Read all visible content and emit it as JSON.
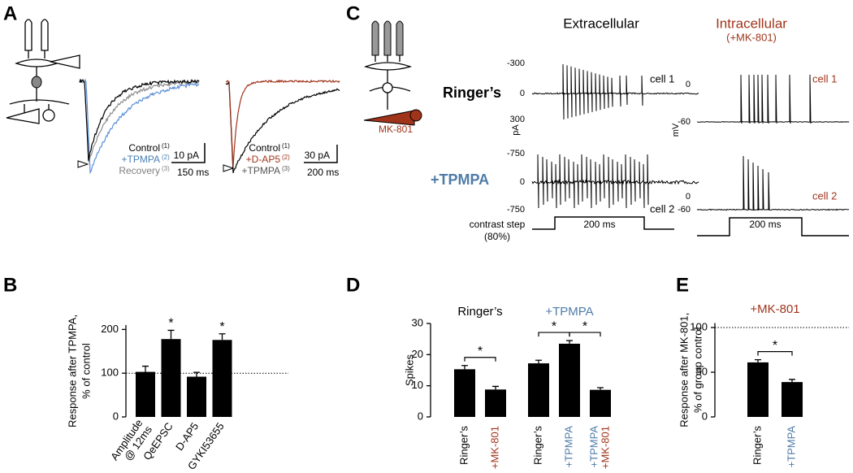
{
  "panel_labels": {
    "a": "A",
    "b": "B",
    "c": "C",
    "d": "D",
    "e": "E"
  },
  "panel_a": {
    "left": {
      "legend": [
        {
          "label": "Control",
          "index": "(1)",
          "color": "#000000"
        },
        {
          "label": "+TPMPA",
          "index": "(2)",
          "color": "#4a7fb5"
        },
        {
          "label": "Recovery",
          "index": "(3)",
          "color": "#808080"
        }
      ],
      "scale_y": "10 pA",
      "scale_x": "150 ms"
    },
    "right": {
      "legend": [
        {
          "label": "Control",
          "index": "(1)",
          "color": "#000000"
        },
        {
          "label": "+D-AP5",
          "index": "(2)",
          "color": "#a0341b"
        },
        {
          "label": "+TPMPA",
          "index": "(3)",
          "color": "#555555"
        }
      ],
      "scale_y": "30 pA",
      "scale_x": "200 ms"
    }
  },
  "panel_c": {
    "extracellular": "Extracellular",
    "intracellular": "Intracellular",
    "intracellular_note": "(+MK-801)",
    "intracellular_color": "#a0341b",
    "drug_label": "MK-801",
    "units": {
      "extra": "pA",
      "intra": "mV"
    },
    "rows": [
      {
        "label": "Ringer’s",
        "color": "#000000",
        "extra_ticks": [
          "-300",
          "0",
          "300"
        ],
        "extra_cell": "cell 1",
        "intra_ticks": [
          "0",
          "-60"
        ],
        "intra_cell": "cell 1"
      },
      {
        "label": "+TPMPA",
        "color": "#4f7ca8",
        "extra_ticks": [
          "-750",
          "0",
          "-750"
        ],
        "extra_cell": "cell 2",
        "intra_ticks": [
          "0",
          "-60"
        ],
        "intra_cell": "cell 2"
      }
    ],
    "stimulus": {
      "label": [
        "contrast step",
        "(80%)"
      ],
      "extra_duration": "200 ms",
      "intra_duration": "200 ms"
    }
  },
  "chart_data": [
    {
      "type": "bar",
      "ylabel": [
        "Response after TPMPA,",
        "% of control"
      ],
      "ylim": [
        0,
        210
      ],
      "yticks": [
        0,
        100,
        200
      ],
      "reference_line": 100,
      "color": "#000000",
      "groups": [
        {
          "categories": [
            [
              "Amplitude",
              "@ 12ms"
            ],
            [
              "QeEPSC"
            ],
            [
              "D-AP5"
            ],
            [
              "GYKI53655"
            ]
          ],
          "category_colors": [
            [
              "#000000",
              "#000000"
            ],
            [
              "#000000"
            ],
            [
              "#000000"
            ],
            [
              "#000000"
            ]
          ],
          "values": [
            103,
            178,
            92,
            176
          ],
          "errors": [
            13,
            20,
            10,
            14
          ],
          "brackets": [],
          "markers": [
            {
              "index": 1,
              "label": "*"
            },
            {
              "index": 3,
              "label": "*"
            }
          ]
        }
      ]
    },
    {
      "type": "bar",
      "ylabel": [
        "Spikes"
      ],
      "ylim": [
        0,
        30
      ],
      "yticks": [
        0,
        10,
        20,
        30
      ],
      "color": "#000000",
      "groups": [
        {
          "title": "Ringer’s",
          "title_color": "#000000",
          "categories": [
            [
              "Ringer’s"
            ],
            [
              "+MK-801"
            ]
          ],
          "category_colors": [
            [
              "#000000"
            ],
            [
              "#a0341b"
            ]
          ],
          "values": [
            15.3,
            8.8
          ],
          "errors": [
            1.2,
            1.0
          ],
          "brackets": [
            {
              "from": 0,
              "to": 1,
              "label": "*"
            }
          ],
          "markers": []
        },
        {
          "title": "+TPMPA",
          "title_color": "#4f7ca8",
          "categories": [
            [
              "Ringer’s"
            ],
            [
              "+TPMPA"
            ],
            [
              "+TPMPA",
              "+MK-801"
            ]
          ],
          "category_colors": [
            [
              "#000000"
            ],
            [
              "#4f7ca8"
            ],
            [
              "#4f7ca8",
              "#a0341b"
            ]
          ],
          "values": [
            17.2,
            23.5,
            8.7
          ],
          "errors": [
            1.0,
            1.0,
            0.7
          ],
          "brackets": [
            {
              "from": 0,
              "to": 1,
              "label": "*"
            },
            {
              "from": 1,
              "to": 2,
              "label": "*"
            }
          ],
          "markers": []
        }
      ]
    },
    {
      "type": "bar",
      "title": "+MK-801",
      "title_color": "#a0341b",
      "ylabel": [
        "Response after MK-801,",
        "% of group control"
      ],
      "ylim": [
        0,
        105
      ],
      "yticks": [
        0,
        50,
        100
      ],
      "reference_line": 100,
      "color": "#000000",
      "groups": [
        {
          "categories": [
            [
              "Ringer’s"
            ],
            [
              "+TPMPA"
            ]
          ],
          "category_colors": [
            [
              "#000000"
            ],
            [
              "#4f7ca8"
            ]
          ],
          "values": [
            61,
            39
          ],
          "errors": [
            3,
            3
          ],
          "brackets": [
            {
              "from": 0,
              "to": 1,
              "label": "*"
            }
          ],
          "markers": []
        }
      ]
    }
  ]
}
